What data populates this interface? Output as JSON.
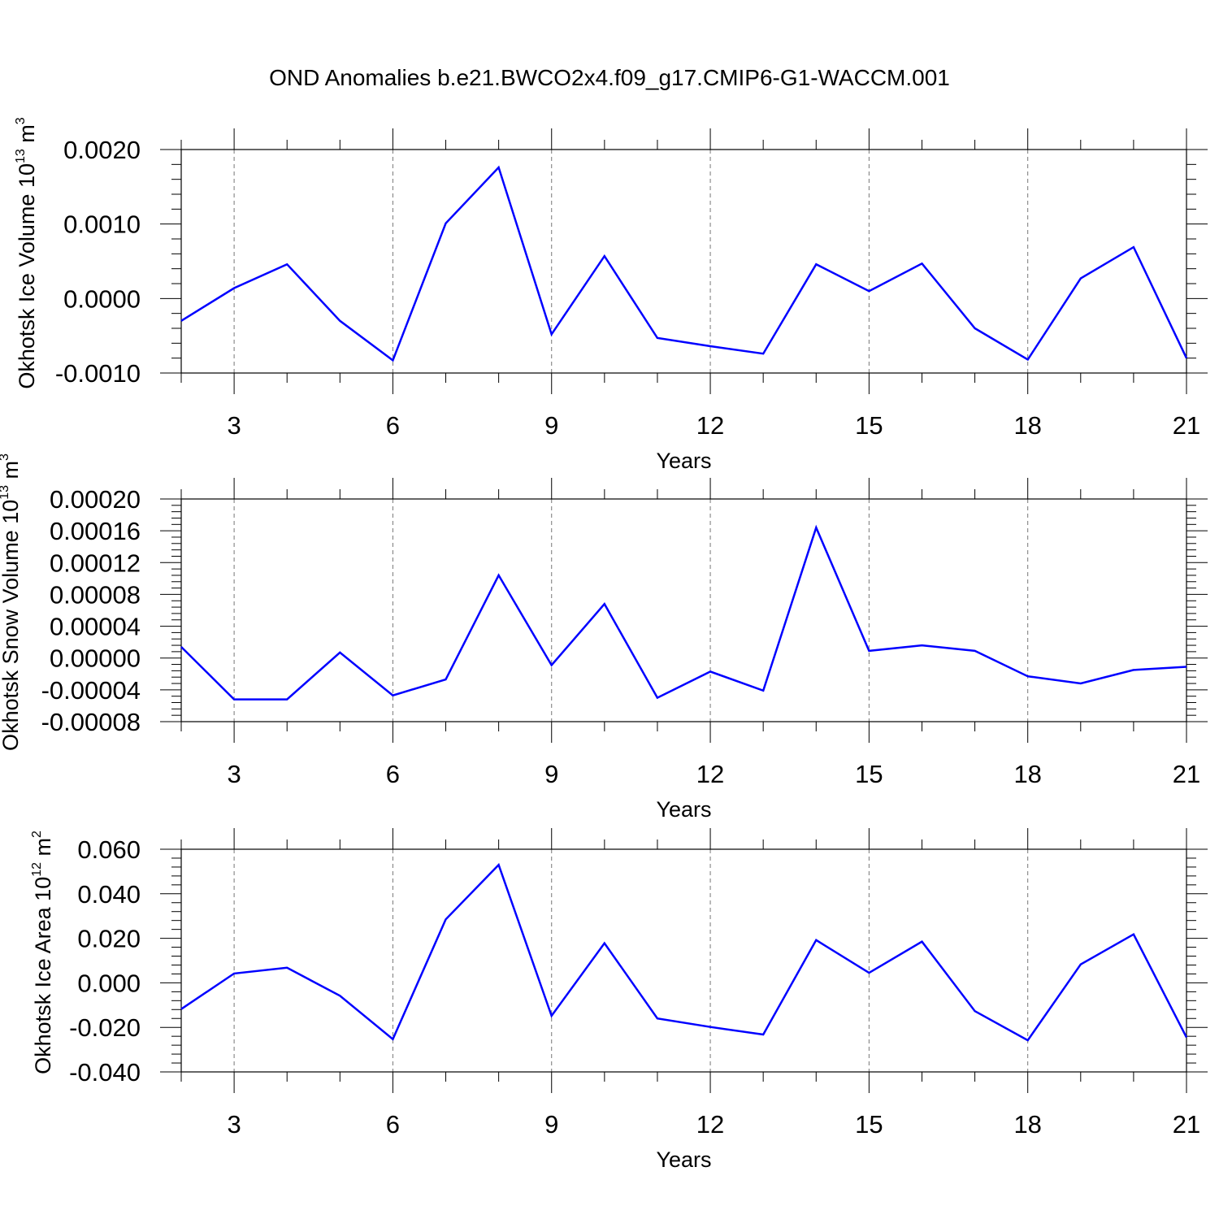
{
  "title": "OND Anomalies b.e21.BWCO2x4.f09_g17.CMIP6-G1-WACCM.001",
  "line_color": "#0000ff",
  "chart_data": [
    {
      "type": "line",
      "xlabel": "Years",
      "ylabel": {
        "text": "Okhotsk Ice Volume 10",
        "exp": "13",
        "unit": "m",
        "unit_exp": "3"
      },
      "xlim": [
        2,
        21
      ],
      "ylim": [
        -0.001,
        0.002
      ],
      "xticks": [
        "3",
        "6",
        "9",
        "12",
        "15",
        "18",
        "21"
      ],
      "yticks": [
        {
          "v": -0.001,
          "label": "-0.0010"
        },
        {
          "v": 0.0,
          "label": "0.0000"
        },
        {
          "v": 0.001,
          "label": "0.0010"
        },
        {
          "v": 0.002,
          "label": "0.0020"
        }
      ],
      "x": [
        2,
        3,
        4,
        5,
        6,
        7,
        8,
        9,
        10,
        11,
        12,
        13,
        14,
        15,
        16,
        17,
        18,
        19,
        20,
        21
      ],
      "values": [
        -0.0003,
        0.00014,
        0.00046,
        -0.0003,
        -0.00083,
        0.00101,
        0.00176,
        -0.00048,
        0.00057,
        -0.00053,
        -0.00064,
        -0.00074,
        0.00046,
        0.0001,
        0.00047,
        -0.0004,
        -0.00082,
        0.00027,
        0.00069,
        -0.0008
      ],
      "grid": "vertical dashed at major x ticks"
    },
    {
      "type": "line",
      "xlabel": "Years",
      "ylabel": {
        "text": "Okhotsk Snow Volume 10",
        "exp": "13",
        "unit": "m",
        "unit_exp": "3"
      },
      "xlim": [
        2,
        21
      ],
      "ylim": [
        -8e-05,
        0.0002
      ],
      "xticks": [
        "3",
        "6",
        "9",
        "12",
        "15",
        "18",
        "21"
      ],
      "yticks": [
        {
          "v": -8e-05,
          "label": "-0.00008"
        },
        {
          "v": -4e-05,
          "label": "-0.00004"
        },
        {
          "v": 0.0,
          "label": "0.00000"
        },
        {
          "v": 4e-05,
          "label": "0.00004"
        },
        {
          "v": 8e-05,
          "label": "0.00008"
        },
        {
          "v": 0.00012,
          "label": "0.00012"
        },
        {
          "v": 0.00016,
          "label": "0.00016"
        },
        {
          "v": 0.0002,
          "label": "0.00020"
        }
      ],
      "x": [
        2,
        3,
        4,
        5,
        6,
        7,
        8,
        9,
        10,
        11,
        12,
        13,
        14,
        15,
        16,
        17,
        18,
        19,
        20,
        21
      ],
      "values": [
        1.4e-05,
        -5.2e-05,
        -5.2e-05,
        7e-06,
        -4.7e-05,
        -2.7e-05,
        0.000104,
        -9e-06,
        6.8e-05,
        -5e-05,
        -1.7e-05,
        -4.1e-05,
        0.000164,
        9e-06,
        1.6e-05,
        9e-06,
        -2.3e-05,
        -3.2e-05,
        -1.5e-05,
        -1.1e-05
      ],
      "grid": "vertical dashed at major x ticks"
    },
    {
      "type": "line",
      "xlabel": "Years",
      "ylabel": {
        "text": "Okhotsk Ice Area 10",
        "exp": "12",
        "unit": "m",
        "unit_exp": "2"
      },
      "xlim": [
        2,
        21
      ],
      "ylim": [
        -0.04,
        0.06
      ],
      "xticks": [
        "3",
        "6",
        "9",
        "12",
        "15",
        "18",
        "21"
      ],
      "yticks": [
        {
          "v": -0.04,
          "label": "-0.040"
        },
        {
          "v": -0.02,
          "label": "-0.020"
        },
        {
          "v": 0.0,
          "label": "0.000"
        },
        {
          "v": 0.02,
          "label": "0.020"
        },
        {
          "v": 0.04,
          "label": "0.040"
        },
        {
          "v": 0.06,
          "label": "0.060"
        }
      ],
      "x": [
        2,
        3,
        4,
        5,
        6,
        7,
        8,
        9,
        10,
        11,
        12,
        13,
        14,
        15,
        16,
        17,
        18,
        19,
        20,
        21
      ],
      "values": [
        -0.0118,
        0.0042,
        0.0068,
        -0.0058,
        -0.0253,
        0.0285,
        0.053,
        -0.0148,
        0.0178,
        -0.016,
        -0.0198,
        -0.0232,
        0.0192,
        0.0045,
        0.0185,
        -0.0127,
        -0.0258,
        0.0083,
        0.0218,
        -0.0245
      ],
      "grid": "vertical dashed at major x ticks"
    }
  ]
}
